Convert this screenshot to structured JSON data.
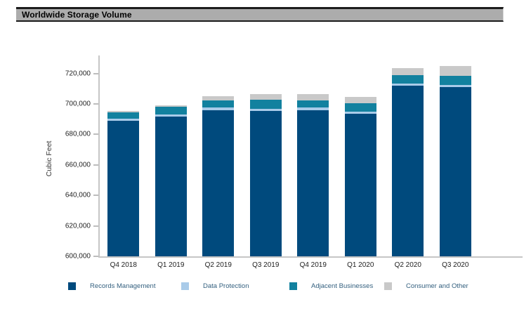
{
  "title_bar": {
    "title": "Worldwide Storage Volume"
  },
  "chart_data": {
    "type": "bar",
    "stacked": true,
    "title": "Worldwide Storage Volume",
    "xlabel": "",
    "ylabel": "Cubic Feet",
    "categories": [
      "Q4 2018",
      "Q1 2019",
      "Q2 2019",
      "Q3 2019",
      "Q4 2019",
      "Q1 2020",
      "Q2 2020",
      "Q3 2020"
    ],
    "series": [
      {
        "name": "Records Management",
        "color": "#004a7d",
        "values": [
          689000,
          691500,
          696000,
          695500,
          696000,
          693500,
          712000,
          711000
        ]
      },
      {
        "name": "Data Protection",
        "color": "#a9cbe9",
        "values": [
          1500,
          1500,
          1500,
          1500,
          1500,
          1500,
          1500,
          1500
        ]
      },
      {
        "name": "Adjacent Businesses",
        "color": "#12819f",
        "values": [
          4000,
          5000,
          5000,
          6000,
          5000,
          5500,
          5500,
          6000
        ]
      },
      {
        "name": "Consumer and Other",
        "color": "#c9c9c9",
        "values": [
          1000,
          1000,
          2500,
          3500,
          4000,
          4000,
          4500,
          6500
        ]
      }
    ],
    "totals": [
      695500,
      699000,
      705000,
      706500,
      706500,
      704500,
      723500,
      725000
    ],
    "ylim": [
      600000,
      731800
    ],
    "yticks": [
      600000,
      620000,
      640000,
      660000,
      680000,
      700000,
      720000
    ],
    "ytick_labels": [
      "600,000",
      "620,000",
      "640,000",
      "660,000",
      "680,000",
      "700,000",
      "720,000"
    ],
    "grid": false,
    "legend_position": "bottom",
    "legend_colors": {
      "accent_text": "#34607f"
    }
  }
}
